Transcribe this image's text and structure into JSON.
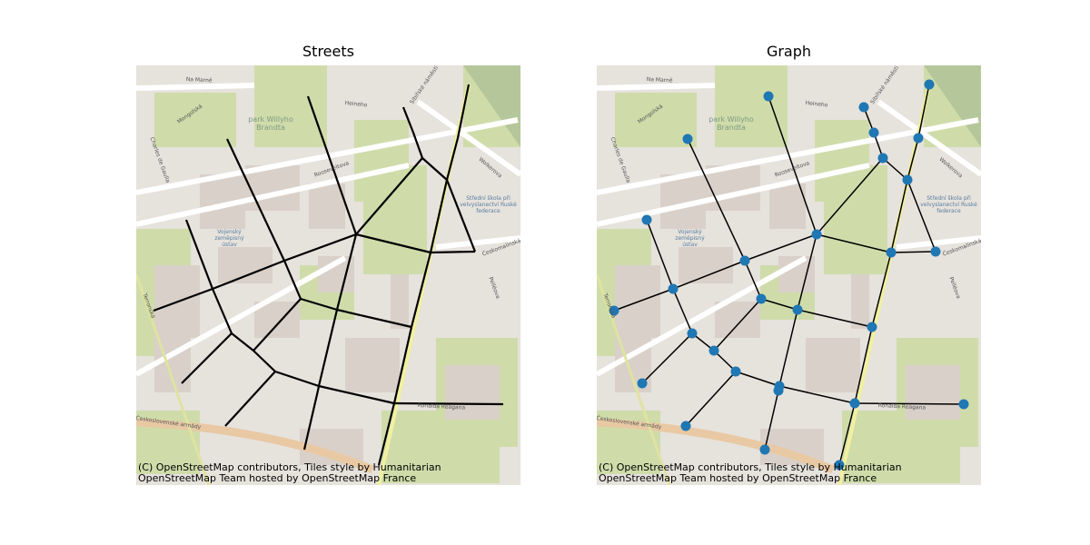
{
  "figure": {
    "panels": [
      {
        "title": "Streets",
        "attribution_line1": "(C) OpenStreetMap contributors, Tiles style by Humanitarian",
        "attribution_line2": "OpenStreetMap Team hosted by OpenStreetMap France",
        "layer": "street lines"
      },
      {
        "title": "Graph",
        "attribution_line1": "(C) OpenStreetMap contributors, Tiles style by Humanitarian",
        "attribution_line2": "OpenStreetMap Team hosted by OpenStreetMap France",
        "layer": "nodes and edges"
      }
    ],
    "map_labels": [
      "Na Marně",
      "Mongolská",
      "park Willyho Brandta",
      "Heineho",
      "Sibiřské náměstí",
      "Rooseveltova",
      "Charles de Gaulla",
      "Vojenský zeměpisný ústav",
      "Střední škola při velvyslanectví Ruské federace",
      "Českomalínská",
      "Terronská",
      "Pelléova",
      "Ronalda Reagana",
      "Československé armády",
      "Wolkerova"
    ],
    "colors": {
      "edge": "#000000",
      "node": "#1f77b4",
      "park": "#cfdcaa",
      "building": "#d9d0c9",
      "road": "#ffffff",
      "main_road": "#e8c9a4"
    }
  }
}
